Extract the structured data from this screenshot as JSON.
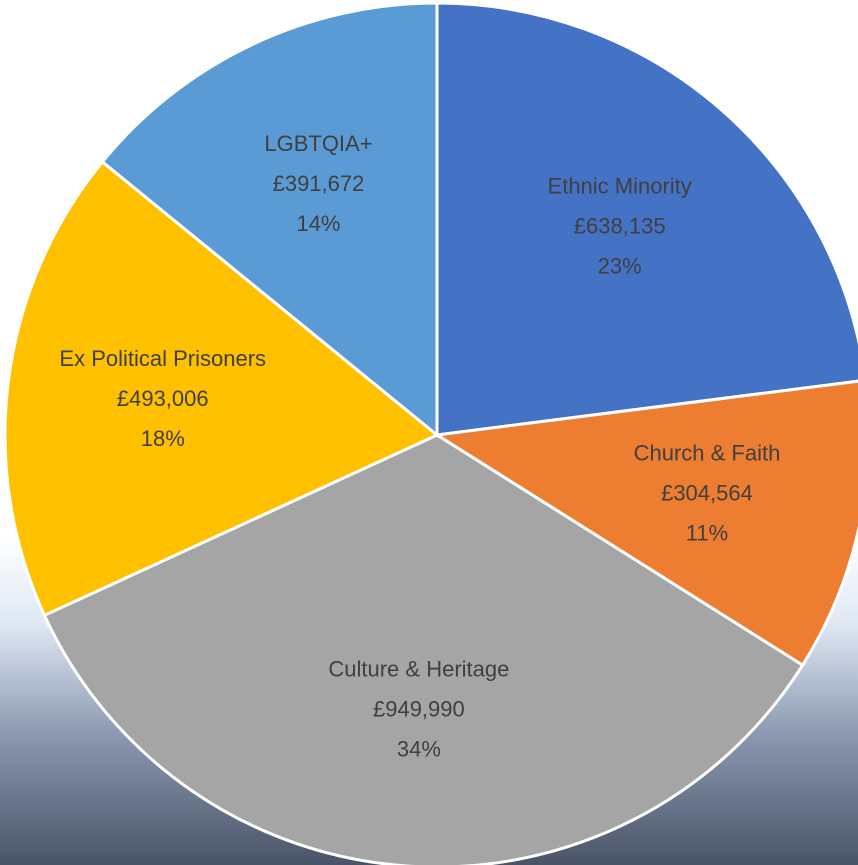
{
  "chart_data": {
    "type": "pie",
    "categories": [
      "Ethnic Minority",
      "Church & Faith",
      "Culture & Heritage",
      "Ex Political Prisoners",
      "LGBTQIA+"
    ],
    "values": [
      638135,
      304564,
      949990,
      493006,
      391672
    ],
    "value_labels": [
      "£638,135",
      "£304,564",
      "£949,990",
      "£493,006",
      "£391,672"
    ],
    "share_labels": [
      "23%",
      "11%",
      "34%",
      "18%",
      "14%"
    ],
    "colors": [
      "#4472c4",
      "#ed7d31",
      "#a5a5a5",
      "#ffc000",
      "#5b9bd5"
    ]
  }
}
